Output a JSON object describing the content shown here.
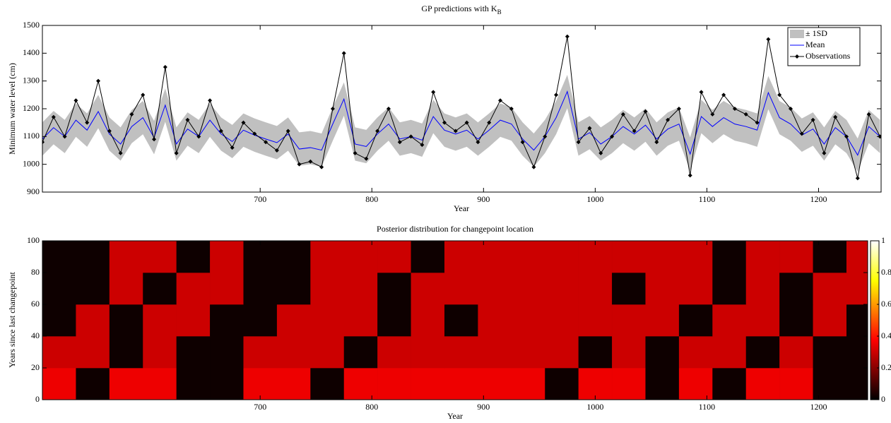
{
  "chart_data": [
    {
      "type": "line",
      "title": "GP predictions with K",
      "title_subscript": "B",
      "x_label": "Year",
      "y_label": "Minimum water level (cm)",
      "xlim": [
        505,
        1256
      ],
      "ylim": [
        900,
        1500
      ],
      "xticks": [
        700,
        800,
        900,
        1000,
        1100,
        1200
      ],
      "yticks": [
        900,
        1000,
        1100,
        1200,
        1300,
        1400,
        1500
      ],
      "legend": "upper right",
      "x": [
        505,
        515,
        525,
        535,
        545,
        555,
        565,
        575,
        585,
        595,
        605,
        615,
        625,
        635,
        645,
        655,
        665,
        675,
        685,
        695,
        705,
        715,
        725,
        735,
        745,
        755,
        765,
        775,
        785,
        795,
        805,
        815,
        825,
        835,
        845,
        855,
        865,
        875,
        885,
        895,
        905,
        915,
        925,
        935,
        945,
        955,
        965,
        975,
        985,
        995,
        1005,
        1015,
        1025,
        1035,
        1045,
        1055,
        1065,
        1075,
        1085,
        1095,
        1105,
        1115,
        1125,
        1135,
        1145,
        1155,
        1165,
        1175,
        1185,
        1195,
        1205,
        1215,
        1225,
        1235,
        1245,
        1255
      ],
      "series": [
        {
          "name": "± 1SD",
          "color": "#c0c0c0",
          "type": "band",
          "lower": [
            1031,
            1072,
            1040,
            1099,
            1063,
            1130,
            1049,
            1013,
            1076,
            1108,
            1036,
            1153,
            1013,
            1067,
            1040,
            1099,
            1049,
            1022,
            1063,
            1045,
            1031,
            1018,
            1049,
            995,
            1000,
            991,
            1085,
            1175,
            1013,
            1004,
            1049,
            1085,
            1031,
            1040,
            1027,
            1112,
            1063,
            1049,
            1063,
            1031,
            1063,
            1099,
            1085,
            1031,
            991,
            1040,
            1108,
            1202,
            1031,
            1054,
            1013,
            1040,
            1076,
            1049,
            1081,
            1031,
            1067,
            1085,
            977,
            1112,
            1076,
            1108,
            1085,
            1076,
            1063,
            1198,
            1108,
            1085,
            1045,
            1067,
            1013,
            1072,
            1040,
            973,
            1076,
            1040
          ],
          "upper": [
            1151,
            1192,
            1160,
            1219,
            1183,
            1250,
            1169,
            1133,
            1196,
            1228,
            1156,
            1273,
            1133,
            1187,
            1160,
            1219,
            1169,
            1142,
            1183,
            1165,
            1151,
            1138,
            1169,
            1115,
            1120,
            1111,
            1205,
            1295,
            1133,
            1124,
            1169,
            1205,
            1151,
            1160,
            1147,
            1232,
            1183,
            1169,
            1183,
            1151,
            1183,
            1219,
            1205,
            1151,
            1111,
            1160,
            1228,
            1322,
            1151,
            1174,
            1133,
            1160,
            1196,
            1169,
            1201,
            1151,
            1187,
            1205,
            1097,
            1232,
            1196,
            1228,
            1205,
            1196,
            1183,
            1318,
            1228,
            1205,
            1165,
            1187,
            1133,
            1192,
            1160,
            1093,
            1196,
            1160
          ]
        },
        {
          "name": "Mean",
          "color": "#0000ff",
          "type": "line",
          "values": [
            1091,
            1132,
            1100,
            1159,
            1123,
            1190,
            1109,
            1073,
            1136,
            1168,
            1096,
            1213,
            1073,
            1127,
            1100,
            1159,
            1109,
            1082,
            1123,
            1105,
            1091,
            1078,
            1109,
            1055,
            1060,
            1051,
            1145,
            1235,
            1073,
            1064,
            1109,
            1145,
            1091,
            1100,
            1087,
            1172,
            1123,
            1109,
            1123,
            1091,
            1123,
            1159,
            1145,
            1091,
            1051,
            1100,
            1168,
            1262,
            1091,
            1114,
            1073,
            1100,
            1136,
            1109,
            1141,
            1091,
            1127,
            1145,
            1037,
            1172,
            1136,
            1168,
            1145,
            1136,
            1123,
            1258,
            1168,
            1145,
            1105,
            1127,
            1073,
            1132,
            1100,
            1033,
            1136,
            1100
          ]
        },
        {
          "name": "Observations",
          "color": "#000000",
          "type": "line",
          "marker": "diamond",
          "values": [
            1080,
            1170,
            1100,
            1230,
            1150,
            1300,
            1120,
            1040,
            1180,
            1250,
            1090,
            1350,
            1040,
            1160,
            1100,
            1230,
            1120,
            1060,
            1150,
            1110,
            1080,
            1050,
            1120,
            1000,
            1010,
            990,
            1200,
            1400,
            1040,
            1020,
            1120,
            1200,
            1080,
            1100,
            1070,
            1260,
            1150,
            1120,
            1150,
            1080,
            1150,
            1230,
            1200,
            1080,
            990,
            1100,
            1250,
            1460,
            1080,
            1130,
            1040,
            1100,
            1180,
            1120,
            1190,
            1080,
            1160,
            1200,
            960,
            1260,
            1180,
            1250,
            1200,
            1180,
            1150,
            1450,
            1250,
            1200,
            1110,
            1160,
            1040,
            1170,
            1100,
            950,
            1180,
            1100
          ]
        }
      ]
    },
    {
      "type": "heatmap",
      "title": "Posterior distribution for changepoint location",
      "x_label": "Year",
      "y_label": "Years since last changepoint",
      "xlim": [
        505,
        1244
      ],
      "ylim": [
        0,
        100
      ],
      "xticks": [
        700,
        800,
        900,
        1000,
        1100,
        1200
      ],
      "yticks": [
        0,
        20,
        40,
        60,
        80,
        100
      ],
      "colormap": "hot",
      "colorbar": {
        "lim": [
          0,
          1
        ],
        "ticks": [
          0,
          0.2,
          0.4,
          0.6,
          0.8,
          1
        ]
      },
      "x_bins": [
        505,
        535,
        565,
        595,
        625,
        655,
        685,
        715,
        745,
        775,
        805,
        835,
        865,
        895,
        925,
        955,
        985,
        1015,
        1045,
        1075,
        1105,
        1135,
        1165,
        1195,
        1225,
        1244
      ],
      "y_bins": [
        0,
        20,
        40,
        60,
        80,
        100
      ],
      "values": [
        [
          0.35,
          0.02,
          0.35,
          0.35,
          0.02,
          0.02,
          0.35,
          0.35,
          0.02,
          0.35,
          0.35,
          0.35,
          0.35,
          0.35,
          0.35,
          0.02,
          0.35,
          0.35,
          0.02,
          0.35,
          0.02,
          0.35,
          0.35,
          0.02,
          0.02
        ],
        [
          0.3,
          0.3,
          0.02,
          0.3,
          0.02,
          0.02,
          0.3,
          0.3,
          0.3,
          0.02,
          0.3,
          0.3,
          0.3,
          0.3,
          0.3,
          0.3,
          0.02,
          0.3,
          0.02,
          0.3,
          0.3,
          0.02,
          0.3,
          0.02,
          0.02
        ],
        [
          0.02,
          0.3,
          0.02,
          0.3,
          0.3,
          0.02,
          0.02,
          0.3,
          0.3,
          0.3,
          0.02,
          0.3,
          0.02,
          0.3,
          0.3,
          0.3,
          0.3,
          0.3,
          0.3,
          0.02,
          0.3,
          0.3,
          0.02,
          0.3,
          0.02
        ],
        [
          0.02,
          0.02,
          0.3,
          0.02,
          0.3,
          0.3,
          0.02,
          0.02,
          0.3,
          0.3,
          0.02,
          0.3,
          0.3,
          0.3,
          0.3,
          0.3,
          0.3,
          0.02,
          0.3,
          0.3,
          0.02,
          0.3,
          0.02,
          0.3,
          0.3
        ],
        [
          0.02,
          0.02,
          0.3,
          0.3,
          0.02,
          0.3,
          0.02,
          0.02,
          0.3,
          0.3,
          0.3,
          0.02,
          0.3,
          0.3,
          0.3,
          0.3,
          0.3,
          0.3,
          0.3,
          0.3,
          0.02,
          0.3,
          0.3,
          0.02,
          0.3
        ]
      ]
    }
  ]
}
